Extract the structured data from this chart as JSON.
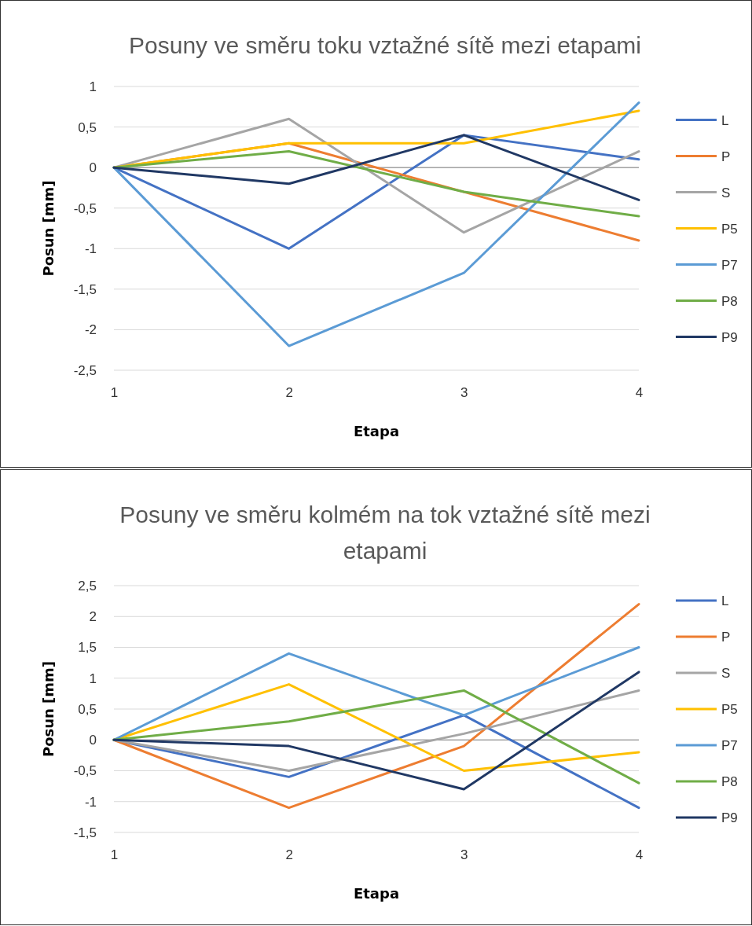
{
  "chart_data": [
    {
      "type": "line",
      "title": "Posuny ve směru toku vztažné sítě mezi etapami",
      "xlabel": "Etapa",
      "ylabel": "Posun [mm]",
      "categories": [
        "1",
        "2",
        "3",
        "4"
      ],
      "ylim": [
        -2.5,
        1
      ],
      "yticks": [
        {
          "value": -2.5,
          "label": "-2,5"
        },
        {
          "value": -2,
          "label": "-2"
        },
        {
          "value": -1.5,
          "label": "-1,5"
        },
        {
          "value": -1,
          "label": "-1"
        },
        {
          "value": -0.5,
          "label": "-0,5"
        },
        {
          "value": 0,
          "label": "0"
        },
        {
          "value": 0.5,
          "label": "0,5"
        },
        {
          "value": 1,
          "label": "1"
        }
      ],
      "grid": "y",
      "legend": "right",
      "marker": "none",
      "series": [
        {
          "name": "L",
          "color": "#4472c4",
          "values": [
            0,
            -1,
            0.4,
            0.1
          ]
        },
        {
          "name": "P",
          "color": "#ed7d31",
          "values": [
            0,
            0.3,
            -0.3,
            -0.9
          ]
        },
        {
          "name": "S",
          "color": "#a5a5a5",
          "values": [
            0,
            0.6,
            -0.8,
            0.2
          ]
        },
        {
          "name": "P5",
          "color": "#ffc000",
          "values": [
            0,
            0.3,
            0.3,
            0.7
          ]
        },
        {
          "name": "P7",
          "color": "#5b9bd5",
          "values": [
            0,
            -2.2,
            -1.3,
            0.8
          ]
        },
        {
          "name": "P8",
          "color": "#70ad47",
          "values": [
            0,
            0.2,
            -0.3,
            -0.6
          ]
        },
        {
          "name": "P9",
          "color": "#203864",
          "values": [
            0,
            -0.2,
            0.4,
            -0.4
          ]
        }
      ]
    },
    {
      "type": "line",
      "title": "Posuny ve směru kolmém na tok vztažné sítě mezi etapami",
      "xlabel": "Etapa",
      "ylabel": "Posun [mm]",
      "categories": [
        "1",
        "2",
        "3",
        "4"
      ],
      "ylim": [
        -1.5,
        2.5
      ],
      "yticks": [
        {
          "value": -1.5,
          "label": "-1,5"
        },
        {
          "value": -1,
          "label": "-1"
        },
        {
          "value": -0.5,
          "label": "-0,5"
        },
        {
          "value": 0,
          "label": "0"
        },
        {
          "value": 0.5,
          "label": "0,5"
        },
        {
          "value": 1,
          "label": "1"
        },
        {
          "value": 1.5,
          "label": "1,5"
        },
        {
          "value": 2,
          "label": "2"
        },
        {
          "value": 2.5,
          "label": "2,5"
        }
      ],
      "grid": "y",
      "legend": "right",
      "marker": "none",
      "series": [
        {
          "name": "L",
          "color": "#4472c4",
          "values": [
            0,
            -0.6,
            0.4,
            -1.1
          ]
        },
        {
          "name": "P",
          "color": "#ed7d31",
          "values": [
            0,
            -1.1,
            -0.1,
            2.2
          ]
        },
        {
          "name": "S",
          "color": "#a5a5a5",
          "values": [
            0,
            -0.5,
            0.1,
            0.8
          ]
        },
        {
          "name": "P5",
          "color": "#ffc000",
          "values": [
            0,
            0.9,
            -0.5,
            -0.2
          ]
        },
        {
          "name": "P7",
          "color": "#5b9bd5",
          "values": [
            0,
            1.4,
            0.4,
            1.5
          ]
        },
        {
          "name": "P8",
          "color": "#70ad47",
          "values": [
            0,
            0.3,
            0.8,
            -0.7
          ]
        },
        {
          "name": "P9",
          "color": "#203864",
          "values": [
            0,
            -0.1,
            -0.8,
            1.1
          ]
        }
      ]
    }
  ]
}
